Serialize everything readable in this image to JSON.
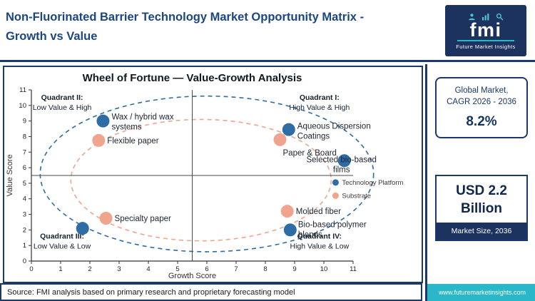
{
  "header": {
    "title_line1": "Non-Fluorinated Barrier Technology Market Opportunity Matrix -",
    "title_line2": "Growth vs Value",
    "logo": {
      "monogram": "fmi",
      "tagline": "Future Market Insights"
    }
  },
  "sidebar": {
    "cagr_box": {
      "line1": "Global Market,",
      "line2": "CAGR 2026 - 2036",
      "value": "8.2%"
    },
    "size_box": {
      "value_line1": "USD 2.2",
      "value_line2": "Billion",
      "caption": "Market Size, 2036"
    },
    "website": "www.futuremarketinsights.com"
  },
  "footer": {
    "source": "Source: FMI analysis based on primary research and proprietary forecasting model"
  },
  "colors": {
    "navy": "#1b3a6b",
    "logo_navy": "#1d335f",
    "teal": "#2ab7c8",
    "platform_blue": "#2e6ca5",
    "substrate_salmon": "#f0a48e",
    "title_text": "#1c4683"
  },
  "chart_data": {
    "type": "scatter",
    "title": "Wheel of Fortune — Value-Growth Analysis",
    "xlabel": "Growth Score",
    "ylabel": "Value Score",
    "xlim": [
      0,
      11
    ],
    "ylim": [
      0,
      11
    ],
    "xticks": [
      0,
      1,
      2,
      3,
      4,
      5,
      6,
      7,
      8,
      9,
      10,
      11
    ],
    "yticks": [
      0,
      1,
      2,
      3,
      4,
      5,
      6,
      7,
      8,
      9,
      10,
      11
    ],
    "grid": false,
    "legend_position": "middle-right",
    "quadrant_divider": {
      "x": 5.5,
      "y": 5.5
    },
    "quadrants": [
      {
        "label": "Quadrant II:",
        "desc": "Low Value & High",
        "cx": 1.05,
        "cy": 10.35
      },
      {
        "label": "Quadrant I:",
        "desc": "High Value & High",
        "cx": 9.85,
        "cy": 10.35
      },
      {
        "label": "Quadrant III:",
        "desc": "Low Value & Low",
        "cx": 1.05,
        "cy": 1.45
      },
      {
        "label": "Quadrant IV:",
        "desc": "High Value & Low",
        "cx": 9.85,
        "cy": 1.45
      }
    ],
    "ellipses": [
      {
        "cx": 6.0,
        "cy": 5.6,
        "rx": 5.7,
        "ry": 5.0,
        "color": "#2e6ca5",
        "style": "dashed"
      },
      {
        "cx": 5.8,
        "cy": 5.2,
        "rx": 4.45,
        "ry": 3.9,
        "color": "#f0a48e",
        "style": "dashed"
      }
    ],
    "series": [
      {
        "name": "Technology Platform",
        "color": "#2e6ca5",
        "points": [
          {
            "x": 2.45,
            "y": 9.0,
            "label_lines": [
              "Wax / hybrid wax",
              "systems"
            ],
            "anchor": "start",
            "dx": 12,
            "dy": -2
          },
          {
            "x": 8.8,
            "y": 8.45,
            "label_lines": [
              "Aqueous Dispersion",
              "Coatings"
            ],
            "anchor": "start",
            "dx": 12,
            "dy": -1
          },
          {
            "x": 10.7,
            "y": 6.45,
            "label_lines": [
              "Selected bio-based",
              "films"
            ],
            "anchor": "middle",
            "dx": -4,
            "dy": 2
          },
          {
            "x": 8.85,
            "y": 2.0,
            "label_lines": [
              "Bio-based polymer",
              "blends"
            ],
            "anchor": "start",
            "dx": 11,
            "dy": -4
          },
          {
            "x": 1.75,
            "y": 2.1,
            "label_lines": [],
            "anchor": "start",
            "dx": 0,
            "dy": 0
          }
        ]
      },
      {
        "name": "Substrate",
        "color": "#f0a48e",
        "points": [
          {
            "x": 2.3,
            "y": 7.75,
            "label_lines": [
              "Flexible paper"
            ],
            "anchor": "start",
            "dx": 12,
            "dy": 4
          },
          {
            "x": 8.5,
            "y": 7.8,
            "label_lines": [
              "Paper & Board"
            ],
            "anchor": "start",
            "dx": 4,
            "dy": 22
          },
          {
            "x": 8.75,
            "y": 3.2,
            "label_lines": [
              "Molded fiber"
            ],
            "anchor": "start",
            "dx": 12,
            "dy": 4
          },
          {
            "x": 2.55,
            "y": 2.75,
            "label_lines": [
              "Specialty paper"
            ],
            "anchor": "start",
            "dx": 12,
            "dy": 4
          }
        ]
      }
    ],
    "legend": {
      "x": 10.4,
      "ys": [
        5.05,
        4.2
      ]
    },
    "point_radius": 9
  }
}
